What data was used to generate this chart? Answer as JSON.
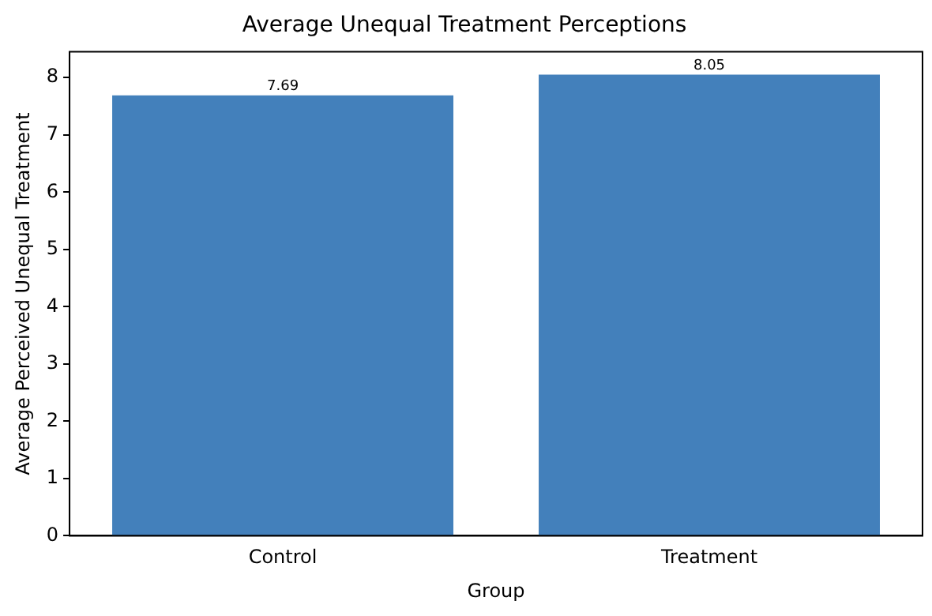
{
  "chart_data": {
    "type": "bar",
    "title": "Average Unequal Treatment Perceptions",
    "xlabel": "Group",
    "ylabel": "Average Perceived Unequal Treatment",
    "categories": [
      "Control",
      "Treatment"
    ],
    "values": [
      7.69,
      8.05
    ],
    "color": "#4380bb",
    "ylim": [
      0,
      8.45
    ],
    "yticks": [
      0,
      1,
      2,
      3,
      4,
      5,
      6,
      7,
      8
    ],
    "grid": false,
    "legend": false,
    "data_labels": true
  }
}
